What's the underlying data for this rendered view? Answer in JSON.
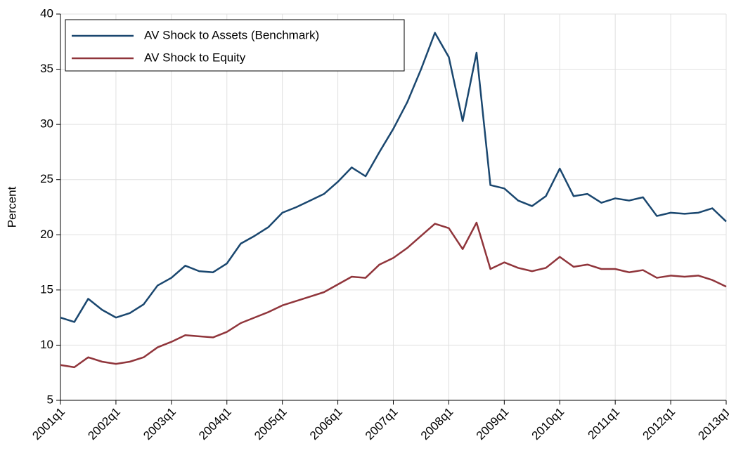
{
  "chart_data": {
    "type": "line",
    "y_label": "Percent",
    "categories": [
      "2001q1",
      null,
      null,
      null,
      "2002q1",
      null,
      null,
      null,
      "2003q1",
      null,
      null,
      null,
      "2004q1",
      null,
      null,
      null,
      "2005q1",
      null,
      null,
      null,
      "2006q1",
      null,
      null,
      null,
      "2007q1",
      null,
      null,
      null,
      "2008q1",
      null,
      null,
      null,
      "2009q1",
      null,
      null,
      null,
      "2010q1",
      null,
      null,
      null,
      "2011q1",
      null,
      null,
      null,
      "2012q1",
      null,
      null,
      null,
      "2013q1"
    ],
    "series": [
      {
        "name": "AV Shock to Assets (Benchmark)",
        "color": "#1a476f",
        "values": [
          12.5,
          12.1,
          14.2,
          13.2,
          12.5,
          12.9,
          13.7,
          15.4,
          16.1,
          17.2,
          16.7,
          16.6,
          17.4,
          19.2,
          19.9,
          20.7,
          22.0,
          22.5,
          23.1,
          23.7,
          24.8,
          26.1,
          25.3,
          27.5,
          29.6,
          32.0,
          35.0,
          38.3,
          36.1,
          30.3,
          36.5,
          24.5,
          24.2,
          23.1,
          22.6,
          23.5,
          26.0,
          23.5,
          23.7,
          22.9,
          23.3,
          23.1,
          23.4,
          21.7,
          22.0,
          21.9,
          22.0,
          22.4,
          21.2
        ]
      },
      {
        "name": "AV Shock to Equity",
        "color": "#90353b",
        "values": [
          8.2,
          8.0,
          8.9,
          8.5,
          8.3,
          8.5,
          8.9,
          9.8,
          10.3,
          10.9,
          10.8,
          10.7,
          11.2,
          12.0,
          12.5,
          13.0,
          13.6,
          14.0,
          14.4,
          14.8,
          15.5,
          16.2,
          16.1,
          17.3,
          17.9,
          18.8,
          19.9,
          21.0,
          20.6,
          18.7,
          21.1,
          16.9,
          17.5,
          17.0,
          16.7,
          17.0,
          18.0,
          17.1,
          17.3,
          16.9,
          16.9,
          16.6,
          16.8,
          16.1,
          16.3,
          16.2,
          16.3,
          15.9,
          15.3
        ]
      }
    ],
    "ylim": [
      5,
      40
    ],
    "yticks": [
      5,
      10,
      15,
      20,
      25,
      30,
      35,
      40
    ],
    "grid": true,
    "legend": "top-left"
  }
}
